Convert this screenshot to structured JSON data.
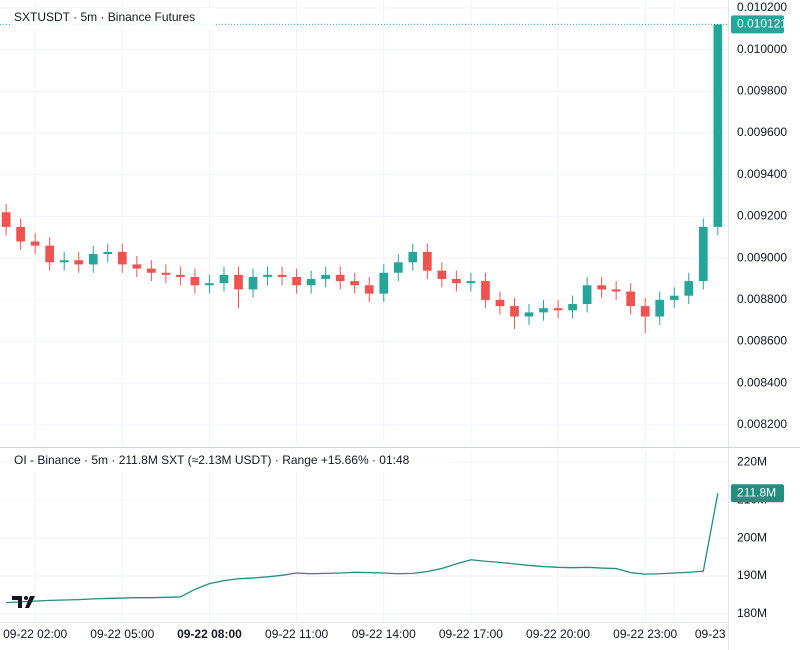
{
  "chart_data": [
    {
      "type": "candlestick",
      "title": "SXTUSDT · 5m · Binance Futures",
      "x": [
        1,
        1.5,
        2,
        2.5,
        3,
        3.5,
        4,
        4.5,
        5,
        5.5,
        6,
        6.5,
        7,
        7.5,
        8,
        8.5,
        9,
        9.5,
        10,
        10.5,
        11,
        11.5,
        12,
        12.5,
        13,
        13.5,
        14,
        14.5,
        15,
        15.5,
        16,
        16.5,
        17,
        17.5,
        18,
        18.5,
        19,
        19.5,
        20,
        20.5,
        21,
        21.5,
        22,
        22.5,
        23,
        23.5,
        24,
        24.5,
        25,
        25.5
      ],
      "open": [
        0.00922,
        0.00915,
        0.00908,
        0.00906,
        0.00898,
        0.00899,
        0.00897,
        0.00902,
        0.00903,
        0.00897,
        0.00895,
        0.00893,
        0.00892,
        0.00891,
        0.00887,
        0.00888,
        0.00892,
        0.00885,
        0.00891,
        0.00892,
        0.00891,
        0.00887,
        0.0089,
        0.00892,
        0.00889,
        0.00887,
        0.00883,
        0.00893,
        0.00898,
        0.00903,
        0.00894,
        0.0089,
        0.00888,
        0.00889,
        0.0088,
        0.00877,
        0.00872,
        0.00874,
        0.00876,
        0.00875,
        0.00878,
        0.00887,
        0.00885,
        0.00884,
        0.00877,
        0.00872,
        0.0088,
        0.00882,
        0.00889,
        0.00915
      ],
      "high": [
        0.00926,
        0.00919,
        0.00912,
        0.0091,
        0.00903,
        0.00903,
        0.00906,
        0.00907,
        0.00907,
        0.00901,
        0.00899,
        0.00897,
        0.00896,
        0.00895,
        0.00892,
        0.00896,
        0.00896,
        0.00895,
        0.00896,
        0.00896,
        0.00895,
        0.00894,
        0.00896,
        0.00896,
        0.00893,
        0.00891,
        0.00897,
        0.00902,
        0.00907,
        0.00907,
        0.00898,
        0.00894,
        0.00893,
        0.00893,
        0.00884,
        0.00881,
        0.00878,
        0.0088,
        0.0088,
        0.00882,
        0.00891,
        0.00891,
        0.00889,
        0.00888,
        0.00881,
        0.00884,
        0.00886,
        0.00893,
        0.00919,
        0.010121
      ],
      "low": [
        0.00911,
        0.00904,
        0.00902,
        0.00894,
        0.00894,
        0.00893,
        0.00893,
        0.00898,
        0.00893,
        0.00891,
        0.00889,
        0.00888,
        0.00887,
        0.00883,
        0.00883,
        0.00884,
        0.00876,
        0.00881,
        0.00887,
        0.00887,
        0.00883,
        0.00883,
        0.00886,
        0.00885,
        0.00883,
        0.00879,
        0.00879,
        0.00889,
        0.00894,
        0.0089,
        0.00886,
        0.00884,
        0.00884,
        0.00876,
        0.00873,
        0.00866,
        0.00868,
        0.0087,
        0.00871,
        0.00871,
        0.00874,
        0.00881,
        0.0088,
        0.00873,
        0.00864,
        0.00868,
        0.00876,
        0.00878,
        0.00885,
        0.00911
      ],
      "close": [
        0.00915,
        0.00908,
        0.00906,
        0.00898,
        0.00899,
        0.00897,
        0.00902,
        0.00903,
        0.00897,
        0.00895,
        0.00893,
        0.00892,
        0.00891,
        0.00887,
        0.00888,
        0.00892,
        0.00885,
        0.00891,
        0.00892,
        0.00891,
        0.00887,
        0.0089,
        0.00892,
        0.00889,
        0.00887,
        0.00883,
        0.00893,
        0.00898,
        0.00903,
        0.00894,
        0.0089,
        0.00888,
        0.00889,
        0.0088,
        0.00877,
        0.00872,
        0.00874,
        0.00876,
        0.00875,
        0.00878,
        0.00887,
        0.00885,
        0.00884,
        0.00877,
        0.00872,
        0.0088,
        0.00882,
        0.00889,
        0.00915,
        0.010121
      ],
      "last_value_label": "0.010121",
      "up_color": "#26a69a",
      "down_color": "#ef5350",
      "ylim": [
        0.008104,
        0.010238
      ],
      "yticks": [
        {
          "value": 0.0082,
          "label": "0.008200"
        },
        {
          "value": 0.0084,
          "label": "0.008400"
        },
        {
          "value": 0.0086,
          "label": "0.008600"
        },
        {
          "value": 0.0088,
          "label": "0.008800"
        },
        {
          "value": 0.009,
          "label": "0.009000"
        },
        {
          "value": 0.0092,
          "label": "0.009200"
        },
        {
          "value": 0.0094,
          "label": "0.009400"
        },
        {
          "value": 0.0096,
          "label": "0.009600"
        },
        {
          "value": 0.0098,
          "label": "0.009800"
        },
        {
          "value": 0.01,
          "label": "0.010000"
        },
        {
          "value": 0.0102,
          "label": "0.010200"
        }
      ],
      "grid": true
    },
    {
      "type": "line",
      "title": "OI - Binance · 5m · 211.8M SXT (≈2.13M USDT) · Range +15.66% · 01:48",
      "x": [
        1,
        1.5,
        2,
        2.5,
        3,
        3.5,
        4,
        4.5,
        5,
        5.5,
        6,
        6.5,
        7,
        7.5,
        8,
        8.5,
        9,
        9.5,
        10,
        10.5,
        11,
        11.5,
        12,
        12.5,
        13,
        13.5,
        14,
        14.5,
        15,
        15.5,
        16,
        16.5,
        17,
        17.5,
        18,
        18.5,
        19,
        19.5,
        20,
        20.5,
        21,
        21.5,
        22,
        22.5,
        23,
        23.5,
        24,
        24.5,
        25,
        25.5
      ],
      "values": [
        183.0,
        183.2,
        183.4,
        183.6,
        183.7,
        183.8,
        184.0,
        184.1,
        184.2,
        184.3,
        184.3,
        184.4,
        184.5,
        186.5,
        188.0,
        188.8,
        189.3,
        189.5,
        189.8,
        190.2,
        190.8,
        190.6,
        190.7,
        190.8,
        191.0,
        190.9,
        190.8,
        190.6,
        190.7,
        191.2,
        192.0,
        193.2,
        194.3,
        193.9,
        193.6,
        193.2,
        192.8,
        192.5,
        192.3,
        192.2,
        192.3,
        192.1,
        192.0,
        190.9,
        190.5,
        190.6,
        190.8,
        191.0,
        191.3,
        211.8
      ],
      "last_value_label": "211.8M",
      "color": "#1f8f7e",
      "ylim": [
        177.9,
        223.2
      ],
      "yticks": [
        {
          "value": 180,
          "label": "180M"
        },
        {
          "value": 190,
          "label": "190M"
        },
        {
          "value": 200,
          "label": "200M"
        },
        {
          "value": 210,
          "label": "210M"
        },
        {
          "value": 220,
          "label": "220M"
        }
      ],
      "xlim": [
        0.79,
        25.85
      ],
      "xticks": [
        {
          "value": 2,
          "label": "09-22 02:00"
        },
        {
          "value": 5,
          "label": "09-22 05:00"
        },
        {
          "value": 8,
          "label": "09-22 08:00"
        },
        {
          "value": 11,
          "label": "09-22 11:00"
        },
        {
          "value": 14,
          "label": "09-22 14:00"
        },
        {
          "value": 17,
          "label": "09-22 17:00"
        },
        {
          "value": 20,
          "label": "09-22 20:00"
        },
        {
          "value": 23,
          "label": "09-22 23:00"
        },
        {
          "value": 24,
          "label": "09-23"
        }
      ],
      "grid": true
    }
  ]
}
